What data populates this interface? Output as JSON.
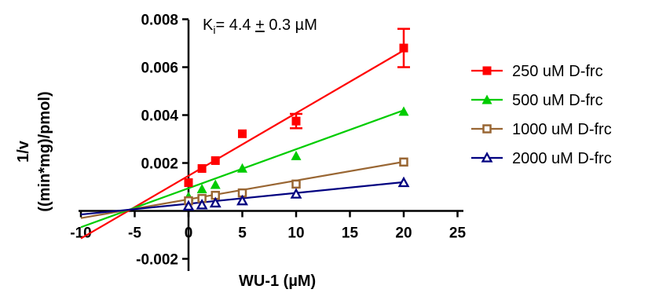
{
  "chart_data": {
    "type": "line",
    "title": "",
    "annotation": "Ki= 4.4 ± 0.3 µM",
    "annotation_parts": {
      "k": "K",
      "sub": "i",
      "rest": "= 4.4 ",
      "pm": "+",
      "tail": " 0.3 µM"
    },
    "xlabel": "WU-1 (µM)",
    "ylabel_line1": "1/v",
    "ylabel_line2": "((min*mg)/pmol)",
    "xlim": [
      -10,
      25
    ],
    "ylim": [
      -0.003,
      0.008
    ],
    "x_ticks": [
      -10,
      -5,
      0,
      5,
      10,
      15,
      20,
      25
    ],
    "x_tick_labels": [
      "-10",
      "-5",
      "0",
      "5",
      "10",
      "15",
      "20",
      "25"
    ],
    "y_ticks": [
      -0.002,
      0.002,
      0.004,
      0.006,
      0.008
    ],
    "y_tick_labels": [
      "-0.002",
      "0.002",
      "0.004",
      "0.006",
      "0.008"
    ],
    "grid": false,
    "legend_position": "right",
    "series": [
      {
        "name": "250 uM D-frc",
        "color": "#ff0000",
        "marker": "filled-square",
        "x": [
          0,
          1.25,
          2.5,
          5,
          10,
          20
        ],
        "y": [
          0.00118,
          0.00177,
          0.0021,
          0.00322,
          0.00375,
          0.0068
        ],
        "error": [
          0,
          0,
          0,
          0,
          0.0003,
          0.0008
        ],
        "fit": {
          "x_start": -10,
          "y_start": -0.00115,
          "x_end": 20,
          "y_end": 0.0067
        }
      },
      {
        "name": "500 uM D-frc",
        "color": "#00cc00",
        "marker": "filled-triangle",
        "x": [
          0,
          1.25,
          2.5,
          5,
          10,
          20
        ],
        "y": [
          0.0006,
          0.00092,
          0.0011,
          0.00178,
          0.0023,
          0.00415
        ],
        "error": [
          0,
          0,
          0,
          0,
          0,
          0
        ],
        "fit": {
          "x_start": -10,
          "y_start": -0.00068,
          "x_end": 20,
          "y_end": 0.0042
        }
      },
      {
        "name": "1000 uM D-frc",
        "color": "#996633",
        "marker": "open-square",
        "x": [
          0,
          1.25,
          2.5,
          5,
          10,
          20
        ],
        "y": [
          0.00042,
          0.00052,
          0.00065,
          0.00075,
          0.00112,
          0.00204
        ],
        "error": [
          0,
          0,
          0,
          0,
          0,
          0
        ],
        "fit": {
          "x_start": -10,
          "y_start": -0.0003,
          "x_end": 20,
          "y_end": 0.00205
        }
      },
      {
        "name": "2000 uM D-frc",
        "color": "#000080",
        "marker": "open-triangle",
        "x": [
          0,
          1.25,
          2.5,
          5,
          10,
          20
        ],
        "y": [
          0.0002,
          0.00025,
          0.00033,
          0.00042,
          0.0007,
          0.00118
        ],
        "error": [
          0,
          0,
          0,
          0,
          0,
          0
        ],
        "fit": {
          "x_start": -10,
          "y_start": -0.00015,
          "x_end": 20,
          "y_end": 0.0012
        }
      }
    ]
  }
}
